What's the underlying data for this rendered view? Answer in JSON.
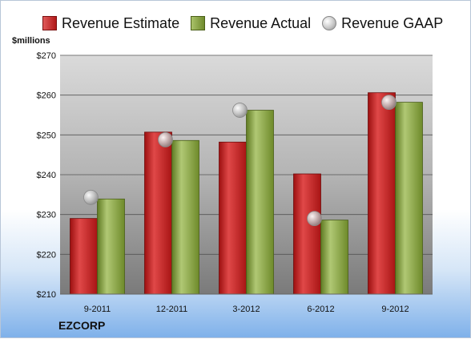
{
  "chart_data": {
    "type": "bar",
    "categories": [
      "9-2011",
      "12-2011",
      "3-2012",
      "6-2012",
      "9-2012"
    ],
    "series": [
      {
        "name": "Revenue Estimate",
        "values": [
          229.0,
          250.7,
          248.2,
          240.2,
          260.6
        ]
      },
      {
        "name": "Revenue Actual",
        "values": [
          233.9,
          248.6,
          256.2,
          228.6,
          258.2
        ]
      },
      {
        "name": "Revenue GAAP",
        "values": [
          234.3,
          248.8,
          256.2,
          229.0,
          258.2
        ]
      }
    ],
    "ylabel": "$millions",
    "ylim": [
      210,
      270
    ],
    "yticks": [
      210,
      220,
      230,
      240,
      250,
      260,
      270
    ],
    "ytick_labels": [
      "$210",
      "$220",
      "$230",
      "$240",
      "$250",
      "$260",
      "$270"
    ],
    "grid": true,
    "legend_position": "top",
    "colors": {
      "estimate": "#c42020",
      "actual": "#8aa646",
      "gaap": "#c0c0c0"
    }
  },
  "footer": {
    "company": "EZCORP"
  }
}
